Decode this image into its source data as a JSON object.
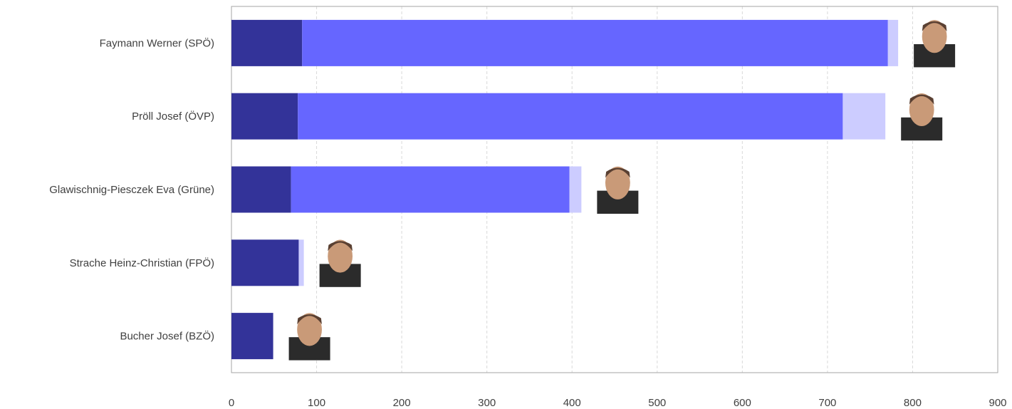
{
  "colors": {
    "series_dark": "#333399",
    "series_mid": "#6666ff",
    "series_light": "#ccccff",
    "grid": "#d9d9d9",
    "axis": "#a6a6a6",
    "text": "#404040"
  },
  "chart_data": {
    "type": "bar",
    "orientation": "horizontal",
    "stacked": true,
    "categories": [
      "Faymann Werner (SPÖ)",
      "Pröll Josef (ÖVP)",
      "Glawischnig-Piesczek Eva (Grüne)",
      "Strache Heinz-Christian (FPÖ)",
      "Bucher Josef (BZÖ)"
    ],
    "series": [
      {
        "values": [
          83,
          78,
          70,
          79,
          49
        ],
        "color": "#333399"
      },
      {
        "values": [
          688,
          640,
          327,
          0,
          0
        ],
        "color": "#6666ff"
      },
      {
        "values": [
          12,
          50,
          14,
          6,
          0
        ],
        "color": "#ccccff"
      }
    ],
    "portraits": [
      "portrait-icon",
      "portrait-icon",
      "portrait-icon",
      "portrait-icon",
      "portrait-icon"
    ],
    "xlim": [
      0,
      900
    ],
    "xticks": [
      0,
      100,
      200,
      300,
      400,
      500,
      600,
      700,
      800,
      900
    ],
    "grid": "vertical dashed",
    "title": "",
    "xlabel": "",
    "ylabel": ""
  }
}
